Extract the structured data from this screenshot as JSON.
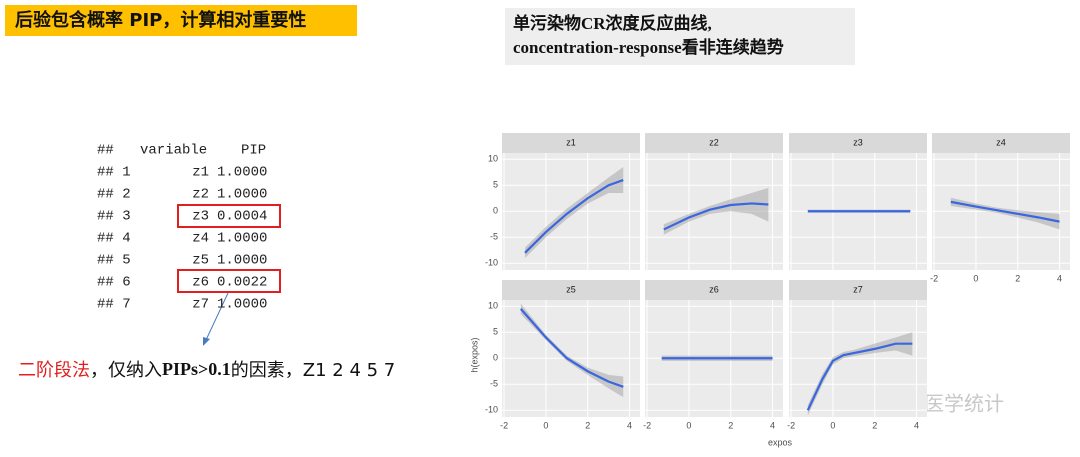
{
  "header": {
    "title": "后验包含概率 PIP，计算相对重要性",
    "subtitle_lines": [
      "单污染物CR浓度反应曲线,",
      "concentration-response看非连续趋势"
    ]
  },
  "table": {
    "header": [
      "##",
      "variable",
      "PIP"
    ],
    "rows": [
      [
        "## 1",
        "z1",
        "1.0000"
      ],
      [
        "## 2",
        "z2",
        "1.0000"
      ],
      [
        "## 3",
        "z3",
        "0.0004"
      ],
      [
        "## 4",
        "z4",
        "1.0000"
      ],
      [
        "## 5",
        "z5",
        "1.0000"
      ],
      [
        "## 6",
        "z6",
        "0.0022"
      ],
      [
        "## 7",
        "z7",
        "1.0000"
      ]
    ]
  },
  "note": {
    "highlight": "二阶段法",
    "text": "，仅纳入",
    "bold": "PIPs>0.1",
    "suffix": "的因素，Z1 2 4 5 7"
  },
  "facet_axes": {
    "x_label": "expos",
    "y_label": "h(expos)"
  },
  "watermark": "实战医学统计",
  "chart_data": [
    {
      "type": "line",
      "title": "z1",
      "color": "#3a66e0",
      "x": [
        -1,
        0,
        1,
        2,
        3,
        3.7
      ],
      "values": [
        -8,
        -4,
        -0.5,
        2.5,
        5,
        6
      ],
      "lower": [
        -9,
        -5,
        -1.5,
        1.5,
        3.5,
        3.5
      ],
      "upper": [
        -7,
        -3,
        0.5,
        3.5,
        6.5,
        8.5
      ],
      "xlim": [
        -2.1,
        4.5
      ],
      "ylim": [
        -11.3,
        11.2
      ],
      "xticks": [
        -2,
        0,
        2,
        4
      ],
      "yticks": [
        -10,
        -5,
        0,
        5,
        10
      ]
    },
    {
      "type": "line",
      "title": "z2",
      "color": "#3a66e0",
      "x": [
        -1.2,
        0,
        1,
        2,
        3,
        3.8
      ],
      "values": [
        -3.5,
        -1.2,
        0.3,
        1.2,
        1.5,
        1.3
      ],
      "lower": [
        -4.5,
        -2,
        -0.5,
        0,
        -0.5,
        -2
      ],
      "upper": [
        -2.5,
        -0.5,
        1,
        2.3,
        3.5,
        4.5
      ],
      "xlim": [
        -2.1,
        4.5
      ],
      "ylim": [
        -11.3,
        11.2
      ],
      "xticks": [
        -2,
        0,
        2,
        4
      ],
      "yticks": [
        -10,
        -5,
        0,
        5,
        10
      ]
    },
    {
      "type": "line",
      "title": "z3",
      "color": "#3a66e0",
      "x": [
        -1.2,
        0,
        1,
        2,
        3,
        3.7
      ],
      "values": [
        0,
        0,
        0,
        0,
        0,
        0
      ],
      "lower": [
        -0.3,
        -0.3,
        -0.3,
        -0.3,
        -0.3,
        -0.3
      ],
      "upper": [
        0.3,
        0.3,
        0.3,
        0.3,
        0.3,
        0.3
      ],
      "xlim": [
        -2.1,
        4.5
      ],
      "ylim": [
        -11.3,
        11.2
      ],
      "xticks": [
        -2,
        0,
        2,
        4
      ],
      "yticks": [
        -10,
        -5,
        0,
        5,
        10
      ]
    },
    {
      "type": "line",
      "title": "z4",
      "color": "#3a66e0",
      "x": [
        -1.2,
        0,
        1,
        2,
        3,
        4
      ],
      "values": [
        1.8,
        0.9,
        0.2,
        -0.5,
        -1.2,
        -2
      ],
      "lower": [
        1,
        0.3,
        -0.3,
        -1.2,
        -2.2,
        -3.5
      ],
      "upper": [
        2.6,
        1.5,
        0.7,
        0.2,
        -0.2,
        -0.5
      ],
      "xlim": [
        -2.1,
        4.5
      ],
      "ylim": [
        -11.3,
        11.2
      ],
      "xticks": [
        -2,
        0,
        2,
        4
      ],
      "yticks": [
        -10,
        -5,
        0,
        5,
        10
      ]
    },
    {
      "type": "line",
      "title": "z5",
      "color": "#3a66e0",
      "x": [
        -1.2,
        0,
        1,
        2,
        3,
        3.7
      ],
      "values": [
        9.5,
        4,
        0,
        -2.5,
        -4.5,
        -5.5
      ],
      "lower": [
        8.5,
        3.5,
        -0.5,
        -3.2,
        -5.8,
        -7.5
      ],
      "upper": [
        10.5,
        4.5,
        0.5,
        -1.8,
        -3.2,
        -3.5
      ],
      "xlim": [
        -2.1,
        4.5
      ],
      "ylim": [
        -11.3,
        11.2
      ],
      "xticks": [
        -2,
        0,
        2,
        4
      ],
      "yticks": [
        -10,
        -5,
        0,
        5,
        10
      ]
    },
    {
      "type": "line",
      "title": "z6",
      "color": "#3a66e0",
      "x": [
        -1.3,
        0,
        1,
        2,
        3,
        4
      ],
      "values": [
        0,
        0,
        0,
        0,
        0,
        0
      ],
      "lower": [
        -0.5,
        -0.5,
        -0.5,
        -0.5,
        -0.5,
        -0.5
      ],
      "upper": [
        0.5,
        0.5,
        0.5,
        0.5,
        0.5,
        0.5
      ],
      "xlim": [
        -2.1,
        4.5
      ],
      "ylim": [
        -11.3,
        11.2
      ],
      "xticks": [
        -2,
        0,
        2,
        4
      ],
      "yticks": [
        -10,
        -5,
        0,
        5,
        10
      ]
    },
    {
      "type": "line",
      "title": "z7",
      "color": "#3a66e0",
      "x": [
        -1.2,
        -0.5,
        0,
        0.5,
        1,
        2,
        3,
        3.8
      ],
      "values": [
        -10,
        -4,
        -0.5,
        0.6,
        1,
        1.8,
        2.8,
        2.8
      ],
      "lower": [
        -11,
        -5,
        -1.2,
        0,
        0.4,
        1,
        1.5,
        0.5
      ],
      "upper": [
        -9,
        -3,
        0.2,
        1.2,
        1.6,
        2.8,
        4,
        5
      ],
      "xlim": [
        -2.1,
        4.5
      ],
      "ylim": [
        -11.3,
        11.2
      ],
      "xticks": [
        -2,
        0,
        2,
        4
      ],
      "yticks": [
        -10,
        -5,
        0,
        5,
        10
      ]
    }
  ]
}
